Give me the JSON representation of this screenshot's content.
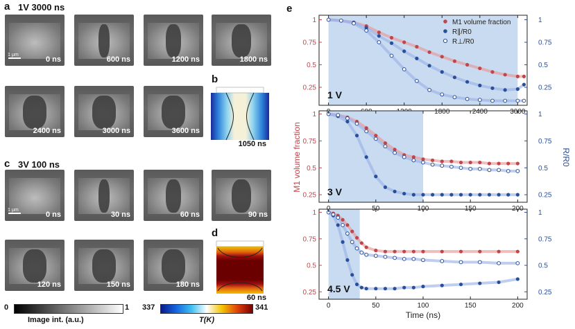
{
  "panels": {
    "a": {
      "letter": "a",
      "title": "1V 3000 ns",
      "times": [
        "0 ns",
        "600 ns",
        "1200 ns",
        "1800 ns",
        "2400 ns",
        "3000 ns",
        "3600 ns"
      ],
      "scalebar": "1 μm"
    },
    "b": {
      "letter": "b",
      "time": "1050 ns"
    },
    "c": {
      "letter": "c",
      "title": "3V 100 ns",
      "times": [
        "0 ns",
        "30 ns",
        "60 ns",
        "90 ns",
        "120 ns",
        "150 ns",
        "180 ns"
      ],
      "scalebar": "1 μm"
    },
    "d": {
      "letter": "d",
      "time": "60 ns"
    },
    "e": {
      "letter": "e"
    }
  },
  "colorbars": {
    "gray": {
      "min": "0",
      "max": "1",
      "label": "Image int. (a.u.)"
    },
    "temp": {
      "min": "337",
      "max": "341",
      "label": "T(K)"
    }
  },
  "colors": {
    "red": "#c0464a",
    "blue": "#2a4f9a",
    "shade": "#c9dbf0",
    "fit_red": "#e89a9a",
    "fit_blue": "#9db3e6"
  },
  "chart_data": {
    "type": "scatter",
    "ylabel_left": "M1 volume fraction",
    "ylabel_right": "R/R0",
    "xlabel": "Time (ns)",
    "legend": [
      "M1 volume fraction",
      "R∥/R0",
      "R⊥/R0"
    ],
    "subplots": [
      {
        "label": "1 V",
        "xlim": [
          -150,
          3150
        ],
        "ylim": [
          0.05,
          1.05
        ],
        "xticks": [
          "0",
          "600",
          "1200",
          "1800",
          "2400",
          "3000"
        ],
        "yticks_left": [
          "1",
          "0.75",
          "0.5",
          "0.25"
        ],
        "yticks_right": [
          "1",
          "0.75",
          "0.5",
          "0.25"
        ],
        "shade": [
          0,
          3000
        ],
        "series": [
          {
            "name": "M1 volume fraction",
            "x": [
              0,
              200,
              400,
              600,
              800,
              1000,
              1200,
              1400,
              1600,
              1800,
              2000,
              2200,
              2400,
              2600,
              2800,
              3000,
              3100
            ],
            "y": [
              1,
              0.99,
              0.97,
              0.93,
              0.86,
              0.8,
              0.75,
              0.7,
              0.64,
              0.59,
              0.54,
              0.5,
              0.46,
              0.42,
              0.39,
              0.37,
              0.37
            ]
          },
          {
            "name": "R∥/R0",
            "x": [
              0,
              200,
              400,
              600,
              800,
              1000,
              1200,
              1400,
              1600,
              1800,
              2000,
              2200,
              2400,
              2600,
              2800,
              3000,
              3100
            ],
            "y": [
              1,
              0.99,
              0.97,
              0.91,
              0.82,
              0.74,
              0.65,
              0.57,
              0.49,
              0.42,
              0.36,
              0.31,
              0.27,
              0.24,
              0.22,
              0.23,
              0.28
            ]
          },
          {
            "name": "R⊥/R0",
            "x": [
              0,
              200,
              400,
              600,
              800,
              1000,
              1200,
              1400,
              1600,
              1800,
              2000,
              2200,
              2400,
              2600,
              2800,
              3000,
              3100
            ],
            "y": [
              1,
              0.99,
              0.96,
              0.88,
              0.75,
              0.6,
              0.45,
              0.32,
              0.22,
              0.17,
              0.14,
              0.12,
              0.11,
              0.1,
              0.1,
              0.1,
              0.1
            ]
          }
        ]
      },
      {
        "label": "3 V",
        "xlim": [
          -10,
          210
        ],
        "ylim": [
          0.18,
          1.03
        ],
        "xticks": [
          "0",
          "50",
          "100",
          "150",
          "200"
        ],
        "yticks_left": [
          "1",
          "0.75",
          "0.5",
          "0.25"
        ],
        "yticks_right": [
          "1",
          "0.75",
          "0.5",
          "0.25"
        ],
        "shade": [
          0,
          100
        ],
        "series": [
          {
            "name": "M1 volume fraction",
            "x": [
              0,
              10,
              20,
              30,
              40,
              50,
              60,
              70,
              80,
              90,
              100,
              110,
              120,
              130,
              140,
              150,
              160,
              170,
              180,
              190,
              200
            ],
            "y": [
              1,
              0.99,
              0.97,
              0.93,
              0.87,
              0.8,
              0.73,
              0.67,
              0.62,
              0.6,
              0.58,
              0.57,
              0.56,
              0.56,
              0.55,
              0.55,
              0.55,
              0.54,
              0.54,
              0.54,
              0.54
            ]
          },
          {
            "name": "R∥/R0",
            "x": [
              0,
              10,
              20,
              30,
              40,
              50,
              60,
              70,
              80,
              90,
              100,
              110,
              120,
              130,
              140,
              150,
              160,
              170,
              180,
              190,
              200
            ],
            "y": [
              1,
              0.98,
              0.93,
              0.8,
              0.6,
              0.42,
              0.32,
              0.28,
              0.26,
              0.25,
              0.25,
              0.25,
              0.25,
              0.25,
              0.25,
              0.25,
              0.25,
              0.25,
              0.25,
              0.25,
              0.25
            ]
          },
          {
            "name": "R⊥/R0",
            "x": [
              0,
              10,
              20,
              30,
              40,
              50,
              60,
              70,
              80,
              90,
              100,
              110,
              120,
              130,
              140,
              150,
              160,
              170,
              180,
              190,
              200
            ],
            "y": [
              1,
              0.99,
              0.96,
              0.91,
              0.84,
              0.77,
              0.7,
              0.64,
              0.6,
              0.57,
              0.55,
              0.53,
              0.52,
              0.51,
              0.5,
              0.49,
              0.49,
              0.48,
              0.48,
              0.47,
              0.47
            ]
          }
        ]
      },
      {
        "label": "4.5 V",
        "xlim": [
          -10,
          210
        ],
        "ylim": [
          0.18,
          1.03
        ],
        "xticks": [
          "0",
          "50",
          "100",
          "150",
          "200"
        ],
        "yticks_left": [
          "1",
          "0.75",
          "0.5",
          "0.25"
        ],
        "yticks_right": [
          "1",
          "0.75",
          "0.5",
          "0.25"
        ],
        "shade": [
          0,
          33
        ],
        "series": [
          {
            "name": "M1 volume fraction",
            "x": [
              0,
              5,
              10,
              15,
              20,
              25,
              30,
              35,
              40,
              50,
              60,
              70,
              80,
              90,
              100,
              120,
              140,
              160,
              180,
              200
            ],
            "y": [
              1,
              0.99,
              0.97,
              0.93,
              0.88,
              0.82,
              0.76,
              0.71,
              0.67,
              0.64,
              0.63,
              0.63,
              0.63,
              0.63,
              0.63,
              0.63,
              0.63,
              0.63,
              0.63,
              0.63
            ]
          },
          {
            "name": "R∥/R0",
            "x": [
              0,
              5,
              10,
              15,
              20,
              25,
              30,
              35,
              40,
              50,
              60,
              70,
              80,
              90,
              100,
              120,
              140,
              160,
              180,
              200
            ],
            "y": [
              1,
              0.97,
              0.88,
              0.72,
              0.55,
              0.41,
              0.32,
              0.29,
              0.28,
              0.28,
              0.28,
              0.28,
              0.29,
              0.29,
              0.3,
              0.31,
              0.32,
              0.33,
              0.34,
              0.37
            ]
          },
          {
            "name": "R⊥/R0",
            "x": [
              0,
              5,
              10,
              15,
              20,
              25,
              30,
              35,
              40,
              50,
              60,
              70,
              80,
              90,
              100,
              120,
              140,
              160,
              180,
              200
            ],
            "y": [
              1,
              0.98,
              0.95,
              0.88,
              0.8,
              0.72,
              0.66,
              0.62,
              0.6,
              0.59,
              0.58,
              0.57,
              0.56,
              0.56,
              0.55,
              0.54,
              0.53,
              0.53,
              0.52,
              0.52
            ]
          }
        ]
      }
    ]
  }
}
